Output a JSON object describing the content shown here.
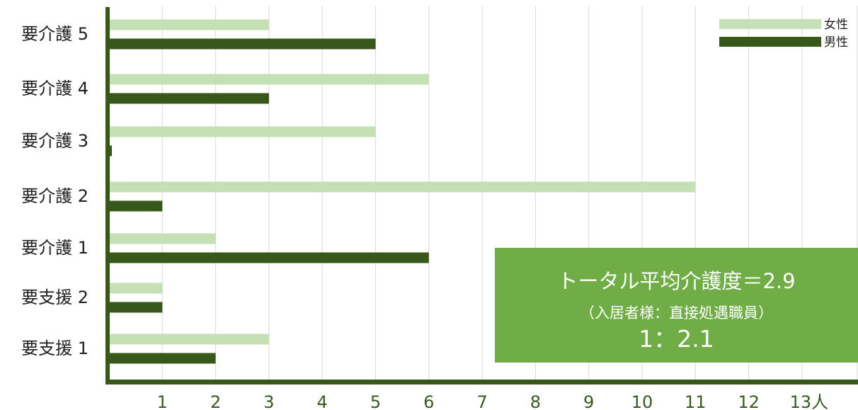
{
  "colors": {
    "female": "#c5e0b4",
    "male": "#38571a",
    "axis": "#38571a",
    "grid": "#d9d9d9",
    "box": "#70ad47"
  },
  "chart_data": {
    "type": "bar",
    "orientation": "horizontal",
    "categories": [
      "要介護 5",
      "要介護 4",
      "要介護 3",
      "要介護 2",
      "要介護 1",
      "要支援 2",
      "要支援 1"
    ],
    "series": [
      {
        "name": "女性",
        "values": [
          3,
          6,
          5,
          11,
          2,
          1,
          3
        ]
      },
      {
        "name": "男性",
        "values": [
          5,
          3,
          0.05,
          1,
          6,
          1,
          2
        ]
      }
    ],
    "xticks": [
      "",
      "1",
      "2",
      "3",
      "4",
      "5",
      "6",
      "7",
      "8",
      "9",
      "10",
      "11",
      "12",
      "13人"
    ],
    "xlim": [
      0,
      14
    ],
    "grid": true,
    "legend": "top-right"
  },
  "info_box": {
    "line1": "トータル平均介護度＝2.9",
    "line2": "（入居者様：直接処遇職員）",
    "line3": "1：2.1"
  }
}
